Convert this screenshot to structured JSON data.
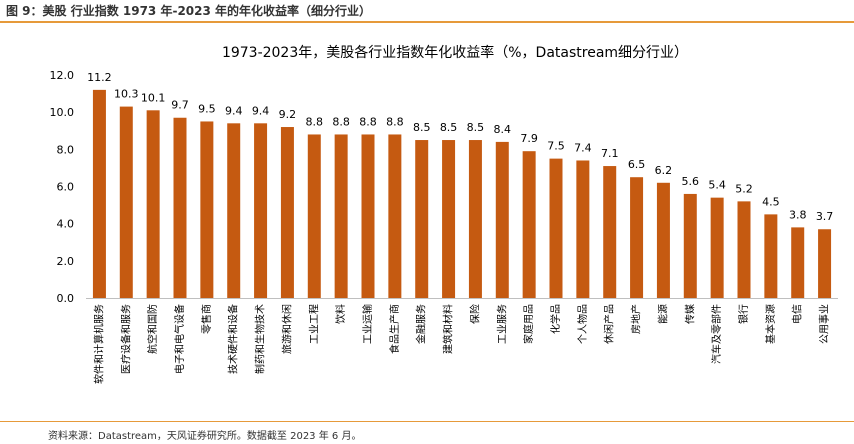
{
  "figure_caption": "图 9：美股 行业指数 1973 年-2023 年的年化收益率（细分行业）",
  "source_note": "资料来源：Datastream，天风证券研究所。数据截至 2023 年 6 月。",
  "colors": {
    "bar": "#c55a11",
    "rule": "#e69a3a",
    "axis": "#bfbfbf"
  },
  "chart_data": {
    "type": "bar",
    "title": "1973-2023年，美股各行业指数年化收益率（%，Datastream细分行业）",
    "xlabel": "",
    "ylabel": "",
    "ylim": [
      0,
      12
    ],
    "yticks": [
      "0.0",
      "2.0",
      "4.0",
      "6.0",
      "8.0",
      "10.0",
      "12.0"
    ],
    "grid": false,
    "categories": [
      "软件和计算机服务",
      "医疗设备和服务",
      "航空和国防",
      "电子和电气设备",
      "零售商",
      "技术硬件和设备",
      "制药和生物技术",
      "旅游和休闲",
      "工业工程",
      "饮料",
      "工业运输",
      "食品生产商",
      "金融服务",
      "建筑和材料",
      "保险",
      "工业服务",
      "家庭用品",
      "化学品",
      "个人物品",
      "休闲产品",
      "房地产",
      "能源",
      "传媒",
      "汽车及零部件",
      "银行",
      "基本资源",
      "电信",
      "公用事业"
    ],
    "values": [
      11.2,
      10.3,
      10.1,
      9.7,
      9.5,
      9.4,
      9.4,
      9.2,
      8.8,
      8.8,
      8.8,
      8.8,
      8.5,
      8.5,
      8.5,
      8.4,
      7.9,
      7.5,
      7.4,
      7.1,
      6.5,
      6.2,
      5.6,
      5.4,
      5.2,
      4.5,
      3.8,
      3.7
    ],
    "value_labels": [
      "11.2",
      "10.3",
      "10.1",
      "9.7",
      "9.5",
      "9.4",
      "9.4",
      "9.2",
      "8.8",
      "8.8",
      "8.8",
      "8.8",
      "8.5",
      "8.5",
      "8.5",
      "8.4",
      "7.9",
      "7.5",
      "7.4",
      "7.1",
      "6.5",
      "6.2",
      "5.6",
      "5.4",
      "5.2",
      "4.5",
      "3.8",
      "3.7"
    ]
  }
}
